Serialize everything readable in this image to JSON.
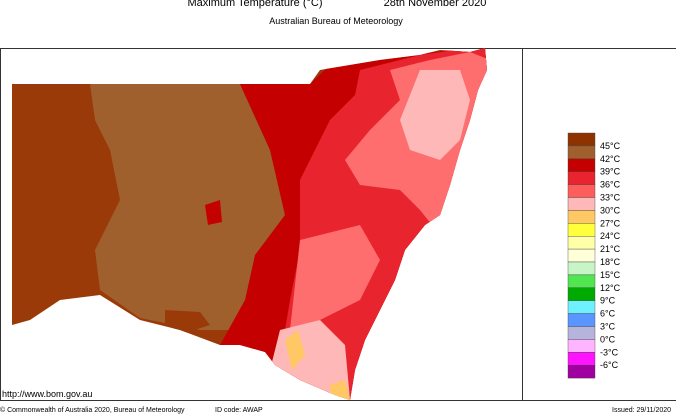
{
  "header": {
    "title": "Maximum Temperature (°C)",
    "date": "28th November 2020",
    "subtitle": "Australian Bureau of Meteorology"
  },
  "legend": {
    "colors": [
      "#8e3300",
      "#a0602d",
      "#c40000",
      "#e8242e",
      "#ff5c5c",
      "#ffb8b8",
      "#ffc864",
      "#ffff3c",
      "#ffffa8",
      "#ffffd8",
      "#c8f5c8",
      "#50e650",
      "#00aa00",
      "#6ef0ff",
      "#5a96ff",
      "#b4b4dc",
      "#ffb4ff",
      "#ff14ff",
      "#a000a0"
    ],
    "labels": [
      "45°C",
      "42°C",
      "39°C",
      "36°C",
      "33°C",
      "30°C",
      "27°C",
      "24°C",
      "21°C",
      "18°C",
      "15°C",
      "12°C",
      "9°C",
      "6°C",
      "3°C",
      "0°C",
      "-3°C",
      "-6°C"
    ]
  },
  "footer": {
    "url": "http://www.bom.gov.au",
    "copyright": "© Commonwealth of Australia 2020, Bureau of Meteorology",
    "id_code": "ID code: AWAP",
    "issued": "Issued: 29/11/2020"
  }
}
